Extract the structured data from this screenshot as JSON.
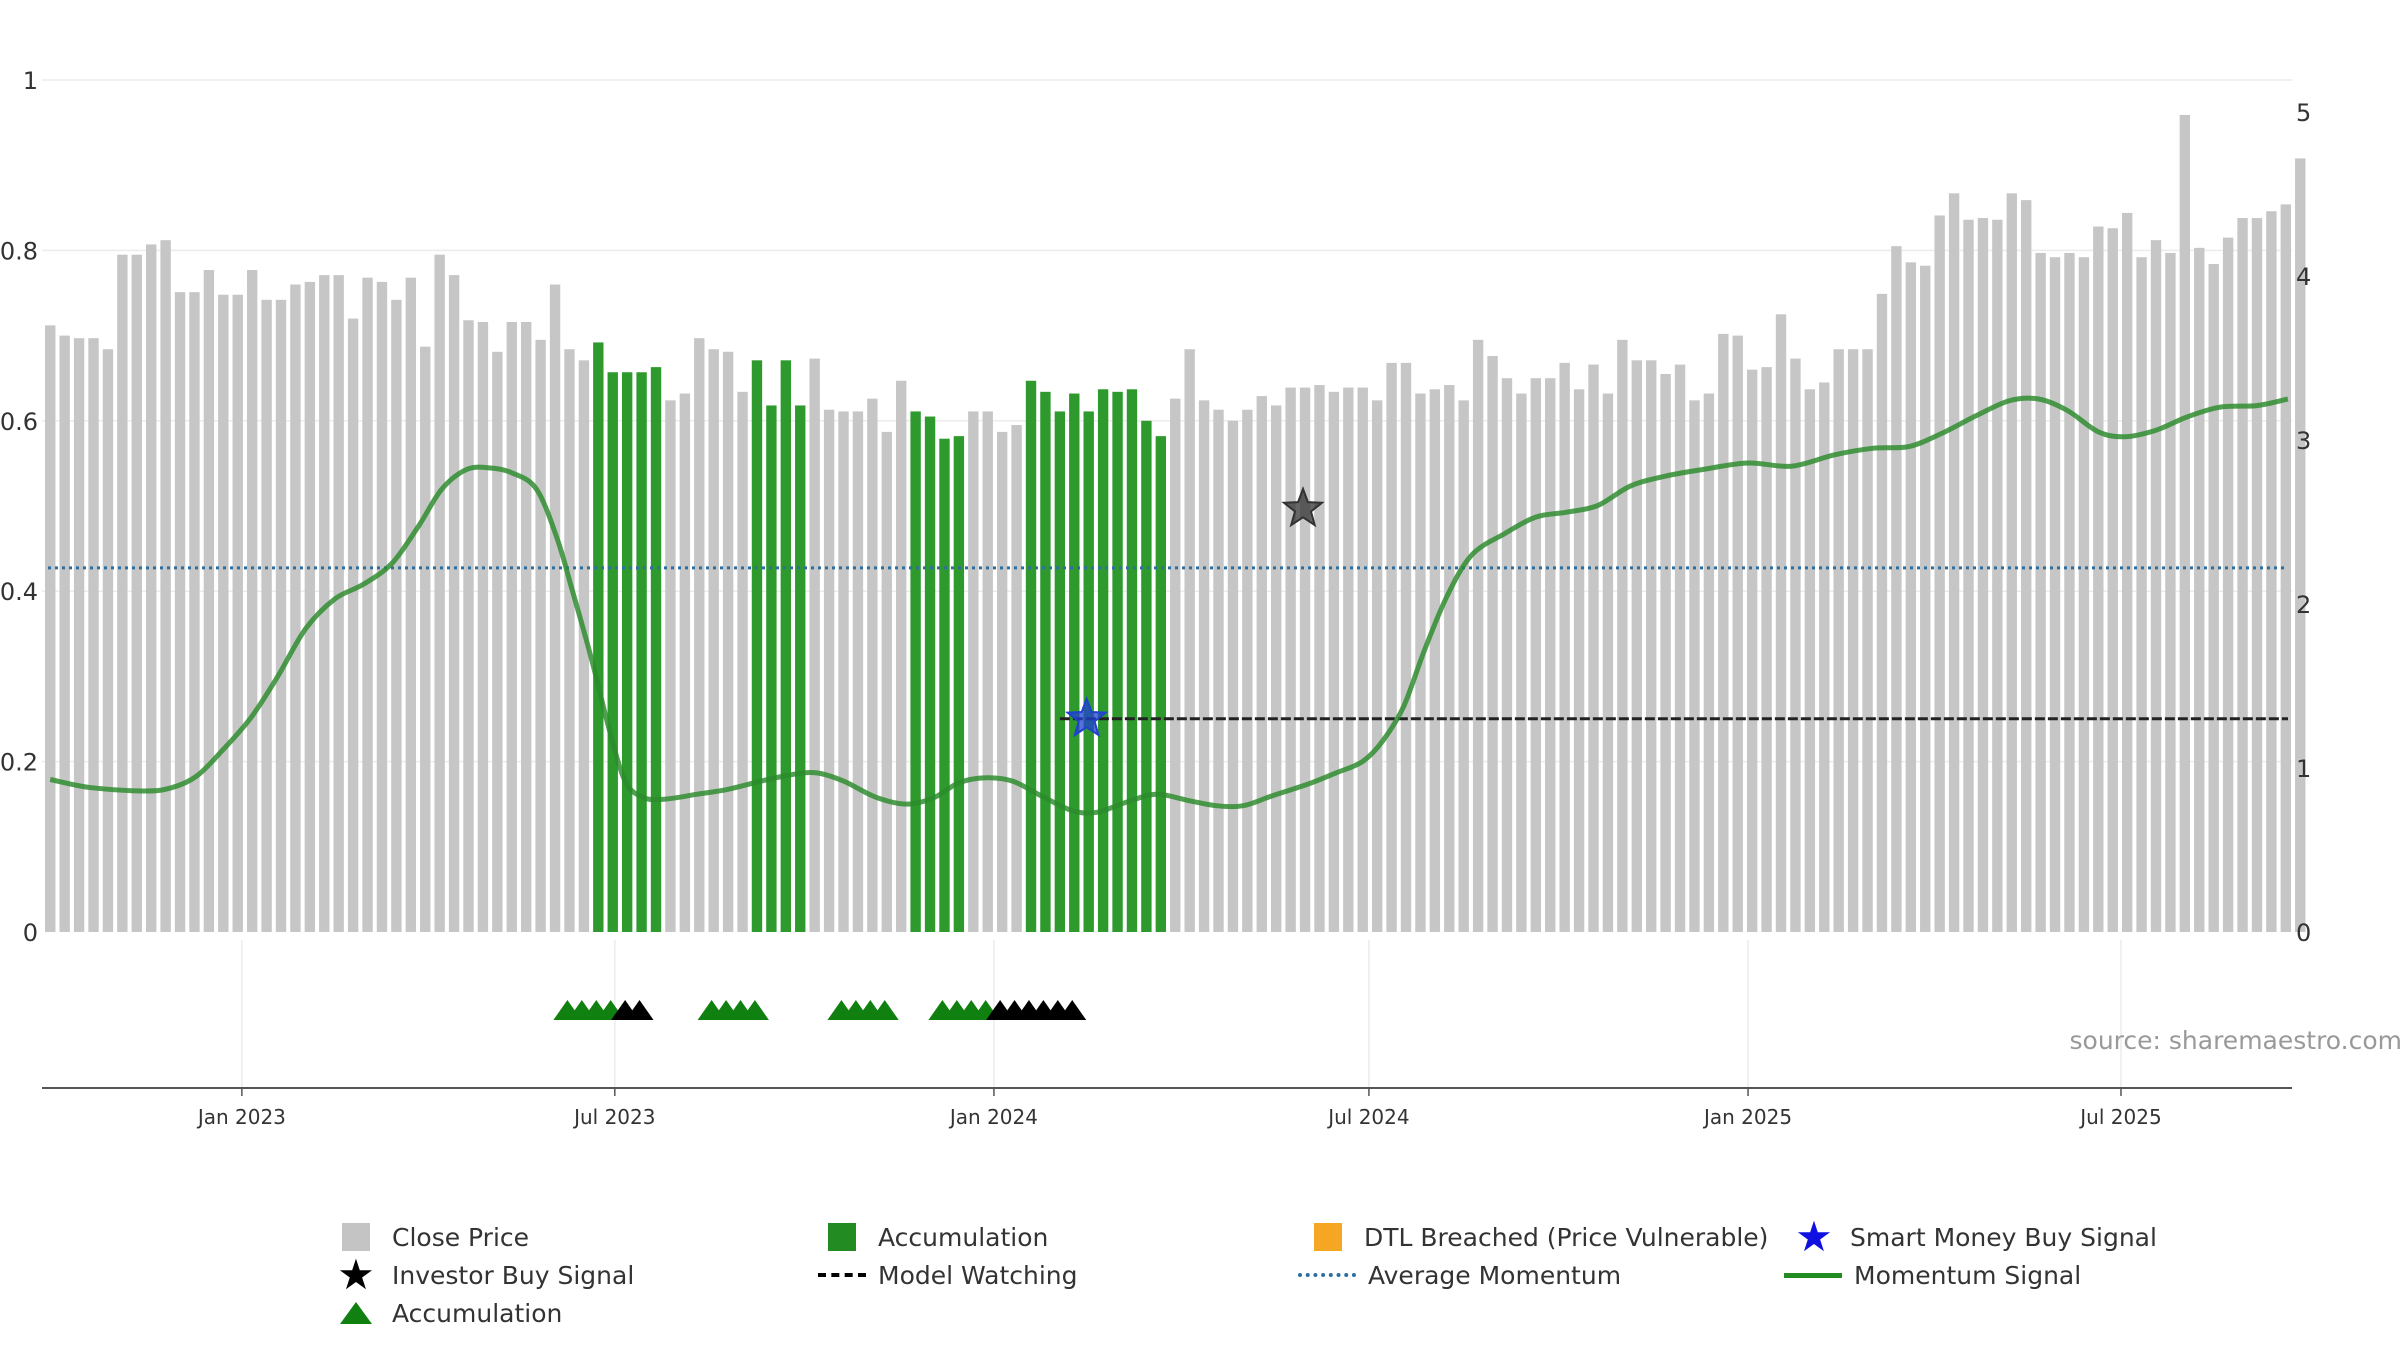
{
  "chart_data": {
    "type": "bar",
    "source_text": "source: sharemaestro.com",
    "left_axis": {
      "ticks": [
        0,
        0.2,
        0.4,
        0.6,
        0.8,
        1
      ],
      "labels": [
        "0",
        "0.2",
        "0.4",
        "0.6",
        "0.8",
        "1"
      ],
      "range": [
        0,
        1
      ]
    },
    "right_axis": {
      "ticks": [
        0,
        1,
        2,
        3,
        4,
        5
      ],
      "labels": [
        "0",
        "1",
        "2",
        "3",
        "4",
        "5"
      ],
      "range": [
        0,
        5
      ]
    },
    "x_axis": {
      "range": [
        "2022-09-26",
        "2025-09-22"
      ],
      "ticks": [
        {
          "date": "2023-01-01",
          "label": "Jan 2023"
        },
        {
          "date": "2023-07-01",
          "label": "Jul 2023"
        },
        {
          "date": "2024-01-01",
          "label": "Jan 2024"
        },
        {
          "date": "2024-07-01",
          "label": "Jul 2024"
        },
        {
          "date": "2025-01-01",
          "label": "Jan 2025"
        },
        {
          "date": "2025-07-01",
          "label": "Jul 2025"
        }
      ]
    },
    "bars": {
      "name": "Close Price",
      "start_date": "2022-09-30",
      "interval_days": 7,
      "values": [
        0.712,
        0.7,
        0.697,
        0.697,
        0.684,
        0.795,
        0.795,
        0.807,
        0.812,
        0.751,
        0.751,
        0.777,
        0.748,
        0.748,
        0.777,
        0.742,
        0.742,
        0.76,
        0.763,
        0.771,
        0.771,
        0.72,
        0.768,
        0.763,
        0.742,
        0.768,
        0.687,
        0.795,
        0.771,
        0.718,
        0.716,
        0.681,
        0.716,
        0.716,
        0.695,
        0.76,
        0.684,
        0.671,
        0.692,
        0.657,
        0.657,
        0.657,
        0.663,
        0.624,
        0.632,
        0.697,
        0.684,
        0.681,
        0.634,
        0.671,
        0.618,
        0.671,
        0.618,
        0.673,
        0.613,
        0.611,
        0.611,
        0.626,
        0.587,
        0.647,
        0.611,
        0.605,
        0.579,
        0.582,
        0.611,
        0.611,
        0.587,
        0.595,
        0.647,
        0.634,
        0.611,
        0.632,
        0.611,
        0.637,
        0.634,
        0.637,
        0.6,
        0.582,
        0.626,
        0.684,
        0.624,
        0.613,
        0.6,
        0.613,
        0.629,
        0.618,
        0.639,
        0.639,
        0.642,
        0.634,
        0.639,
        0.639,
        0.624,
        0.668,
        0.668,
        0.632,
        0.637,
        0.642,
        0.624,
        0.695,
        0.676,
        0.65,
        0.632,
        0.65,
        0.65,
        0.668,
        0.637,
        0.666,
        0.632,
        0.695,
        0.671,
        0.671,
        0.655,
        0.666,
        0.624,
        0.632,
        0.702,
        0.7,
        0.66,
        0.663,
        0.725,
        0.673,
        0.637,
        0.645,
        0.684,
        0.684,
        0.684,
        0.749,
        0.805,
        0.786,
        0.782,
        0.841,
        0.867,
        0.836,
        0.838,
        0.836,
        0.867,
        0.859,
        0.797,
        0.792,
        0.797,
        0.792,
        0.828,
        0.826,
        0.844,
        0.792,
        0.812,
        0.797,
        0.959,
        0.803,
        0.784,
        0.815,
        0.838,
        0.838,
        0.846,
        0.854,
        0.908
      ],
      "accumulation_ranges": [
        [
          38,
          42
        ],
        [
          49,
          52
        ],
        [
          60,
          63
        ],
        [
          68,
          77
        ]
      ]
    },
    "momentum_signal": {
      "name": "Momentum Signal",
      "points": [
        [
          "2022-09-30",
          0.93
        ],
        [
          "2022-10-20",
          0.88
        ],
        [
          "2022-11-15",
          0.86
        ],
        [
          "2022-11-28",
          0.88
        ],
        [
          "2022-12-10",
          0.95
        ],
        [
          "2022-12-22",
          1.1
        ],
        [
          "2023-01-05",
          1.3
        ],
        [
          "2023-01-18",
          1.55
        ],
        [
          "2023-02-01",
          1.85
        ],
        [
          "2023-02-15",
          2.03
        ],
        [
          "2023-03-01",
          2.12
        ],
        [
          "2023-03-15",
          2.25
        ],
        [
          "2023-03-28",
          2.48
        ],
        [
          "2023-04-08",
          2.7
        ],
        [
          "2023-04-20",
          2.82
        ],
        [
          "2023-05-01",
          2.83
        ],
        [
          "2023-05-12",
          2.8
        ],
        [
          "2023-05-24",
          2.7
        ],
        [
          "2023-06-03",
          2.4
        ],
        [
          "2023-06-10",
          2.1
        ],
        [
          "2023-06-20",
          1.65
        ],
        [
          "2023-06-28",
          1.25
        ],
        [
          "2023-07-06",
          0.92
        ],
        [
          "2023-07-15",
          0.82
        ],
        [
          "2023-07-25",
          0.81
        ],
        [
          "2023-08-10",
          0.84
        ],
        [
          "2023-08-25",
          0.87
        ],
        [
          "2023-09-10",
          0.92
        ],
        [
          "2023-09-25",
          0.96
        ],
        [
          "2023-10-07",
          0.97
        ],
        [
          "2023-10-20",
          0.92
        ],
        [
          "2023-11-05",
          0.82
        ],
        [
          "2023-11-20",
          0.78
        ],
        [
          "2023-12-03",
          0.82
        ],
        [
          "2023-12-15",
          0.91
        ],
        [
          "2023-12-28",
          0.94
        ],
        [
          "2024-01-10",
          0.92
        ],
        [
          "2024-01-24",
          0.83
        ],
        [
          "2024-02-08",
          0.74
        ],
        [
          "2024-02-20",
          0.73
        ],
        [
          "2024-03-05",
          0.79
        ],
        [
          "2024-03-20",
          0.84
        ],
        [
          "2024-04-05",
          0.8
        ],
        [
          "2024-04-18",
          0.77
        ],
        [
          "2024-05-01",
          0.77
        ],
        [
          "2024-05-15",
          0.83
        ],
        [
          "2024-06-01",
          0.9
        ],
        [
          "2024-06-15",
          0.97
        ],
        [
          "2024-06-28",
          1.04
        ],
        [
          "2024-07-08",
          1.17
        ],
        [
          "2024-07-18",
          1.38
        ],
        [
          "2024-07-28",
          1.72
        ],
        [
          "2024-08-08",
          2.05
        ],
        [
          "2024-08-20",
          2.3
        ],
        [
          "2024-09-05",
          2.43
        ],
        [
          "2024-09-20",
          2.53
        ],
        [
          "2024-10-05",
          2.56
        ],
        [
          "2024-10-20",
          2.6
        ],
        [
          "2024-11-05",
          2.72
        ],
        [
          "2024-11-22",
          2.78
        ],
        [
          "2024-12-10",
          2.82
        ],
        [
          "2025-01-01",
          2.86
        ],
        [
          "2025-01-22",
          2.84
        ],
        [
          "2025-02-12",
          2.91
        ],
        [
          "2025-03-03",
          2.95
        ],
        [
          "2025-03-20",
          2.96
        ],
        [
          "2025-04-05",
          3.04
        ],
        [
          "2025-04-22",
          3.15
        ],
        [
          "2025-05-08",
          3.24
        ],
        [
          "2025-05-22",
          3.25
        ],
        [
          "2025-06-05",
          3.18
        ],
        [
          "2025-06-20",
          3.05
        ],
        [
          "2025-07-03",
          3.02
        ],
        [
          "2025-07-18",
          3.06
        ],
        [
          "2025-08-02",
          3.14
        ],
        [
          "2025-08-18",
          3.2
        ],
        [
          "2025-09-05",
          3.21
        ],
        [
          "2025-09-20",
          3.25
        ]
      ]
    }
  },
  "legend": [
    {
      "label": "Close Price",
      "symbol": "gray-square"
    },
    {
      "label": "Accumulation",
      "symbol": "green-square"
    },
    {
      "label": "DTL Breached (Price Vulnerable)",
      "symbol": "orange-square"
    },
    {
      "label": "Smart Money Buy Signal",
      "symbol": "blue-star"
    },
    {
      "label": "Investor Buy Signal",
      "symbol": "black-star"
    },
    {
      "label": "Model Watching",
      "symbol": "black-dash"
    },
    {
      "label": "Average Momentum",
      "symbol": "blue-dotted"
    },
    {
      "label": "Momentum Signal",
      "symbol": "green-line"
    },
    {
      "label": "Accumulation",
      "symbol": "green-triangle"
    }
  ]
}
